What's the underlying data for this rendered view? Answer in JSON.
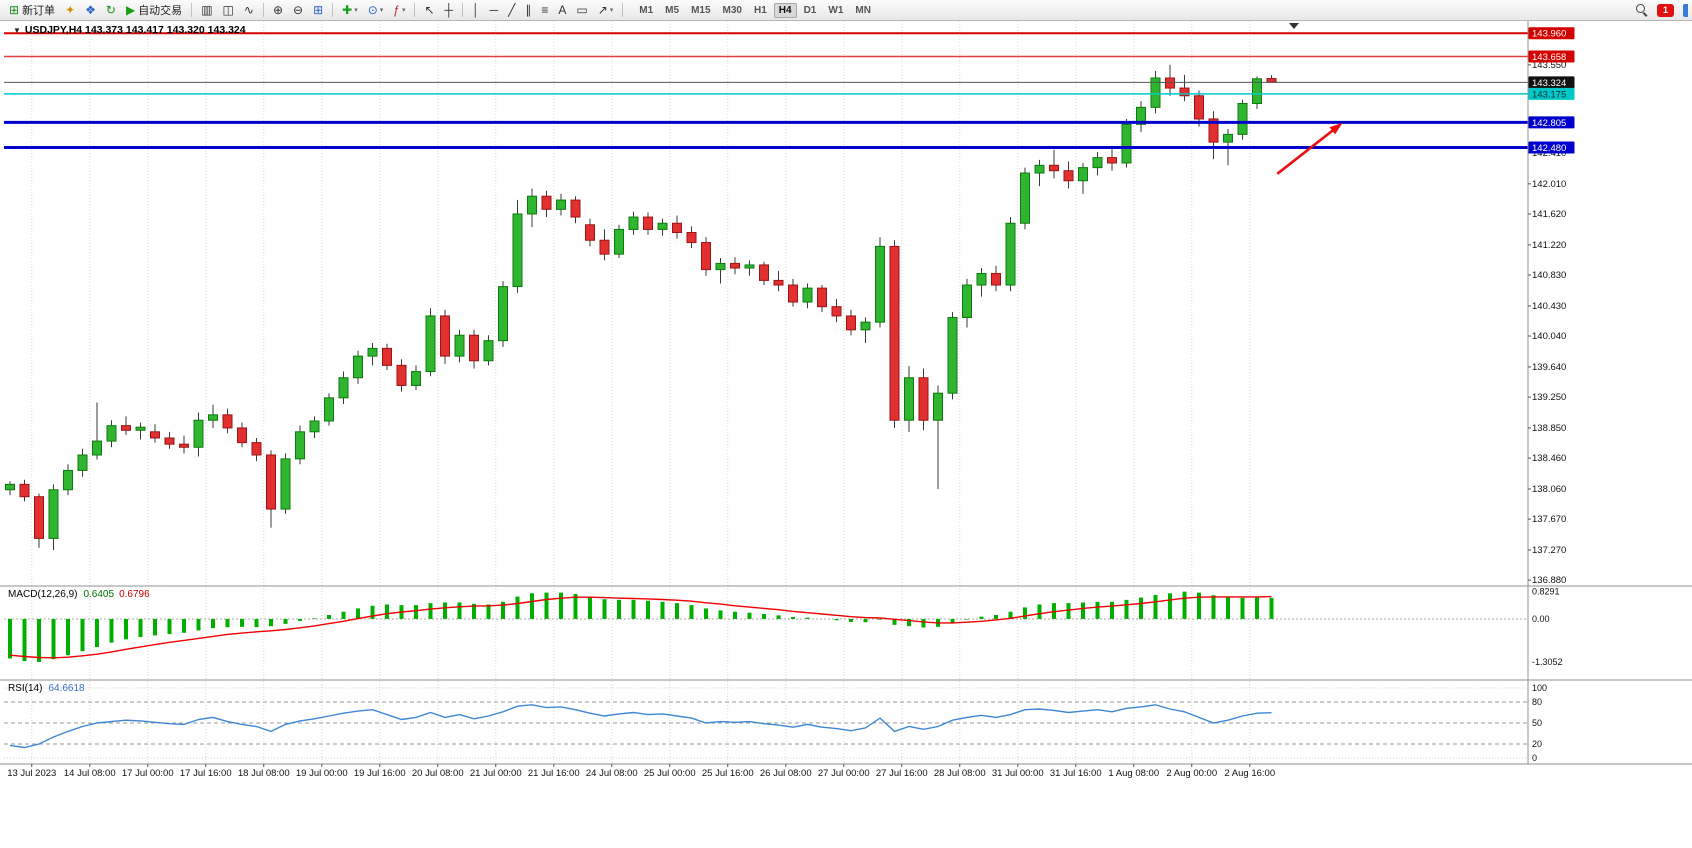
{
  "toolbar": {
    "buttons": [
      {
        "name": "new-order-button",
        "glyph": "⊞",
        "color": "#1a8a1a",
        "label": "新订单"
      },
      {
        "name": "market-watch-icon",
        "glyph": "✦",
        "color": "#d89000"
      },
      {
        "name": "data-window-icon",
        "glyph": "❖",
        "color": "#2860c8"
      },
      {
        "name": "refresh-icon",
        "glyph": "↻",
        "color": "#189018"
      },
      {
        "name": "auto-trading-button",
        "glyph": "▶",
        "color": "#18a018",
        "label": "自动交易"
      },
      {
        "type": "sep"
      },
      {
        "name": "bar-chart-button",
        "glyph": "▥",
        "color": "#333333"
      },
      {
        "name": "candlestick-chart-button",
        "glyph": "◫",
        "color": "#333333"
      },
      {
        "name": "line-chart-button",
        "glyph": "∿",
        "color": "#333333"
      },
      {
        "type": "sep"
      },
      {
        "name": "zoom-in-button",
        "glyph": "⊕",
        "color": "#333333"
      },
      {
        "name": "zoom-out-button",
        "glyph": "⊖",
        "color": "#333333"
      },
      {
        "name": "tile-windows-button",
        "glyph": "⊞",
        "color": "#2860c8"
      },
      {
        "type": "sep"
      },
      {
        "name": "new-chart-button",
        "glyph": "✚",
        "color": "#18a018",
        "caret": true
      },
      {
        "name": "profiles-button",
        "glyph": "⊙",
        "color": "#2860c8",
        "caret": true
      },
      {
        "name": "indicators-button",
        "glyph": "ƒ",
        "color": "#b03030",
        "caret": true
      },
      {
        "type": "sep"
      },
      {
        "name": "cursor-button",
        "glyph": "↖",
        "color": "#333333"
      },
      {
        "name": "crosshair-button",
        "glyph": "┼",
        "color": "#333333"
      },
      {
        "type": "sep"
      },
      {
        "name": "vertical-line-button",
        "glyph": "│",
        "color": "#333333"
      },
      {
        "name": "horizontal-line-button",
        "glyph": "─",
        "color": "#333333"
      },
      {
        "name": "trendline-button",
        "glyph": "╱",
        "color": "#333333"
      },
      {
        "name": "channel-button",
        "glyph": "∥",
        "color": "#333333"
      },
      {
        "name": "fibonacci-button",
        "glyph": "≡",
        "color": "#333333"
      },
      {
        "name": "text-button",
        "glyph": "A",
        "color": "#333333"
      },
      {
        "name": "text-label-button",
        "glyph": "▭",
        "color": "#333333"
      },
      {
        "name": "arrows-button",
        "glyph": "↗",
        "color": "#333333",
        "caret": true
      },
      {
        "type": "sep"
      }
    ],
    "timeframes": [
      "M1",
      "M5",
      "M15",
      "M30",
      "H1",
      "H4",
      "D1",
      "W1",
      "MN"
    ],
    "active_timeframe": "H4",
    "notification_count": "1"
  },
  "chart": {
    "marker": "▼",
    "title": "USDJPY,H4  143.373 143.417 143.320 143.324"
  },
  "chart_data": {
    "type": "candlestick",
    "symbol": "USDJPY",
    "timeframe": "H4",
    "current": {
      "open": "143.373",
      "high": "143.417",
      "low": "143.320",
      "close": "143.324"
    },
    "price_axis": {
      "min": 136.83,
      "max": 144.105,
      "ticks": [
        "143.550",
        "142.410",
        "142.010",
        "141.620",
        "141.220",
        "140.830",
        "140.430",
        "140.040",
        "139.640",
        "139.250",
        "138.850",
        "138.460",
        "138.060",
        "137.670",
        "137.270",
        "136.880"
      ],
      "badges": [
        {
          "value": "143.960",
          "bg": "#d40000",
          "fg": "#ffffff"
        },
        {
          "value": "143.658",
          "bg": "#d40000",
          "fg": "#ffffff"
        },
        {
          "value": "143.324",
          "bg": "#111111",
          "fg": "#ffffff"
        },
        {
          "value": "143.175",
          "bg": "#00c8c8",
          "fg": "#00312f"
        },
        {
          "value": "142.805",
          "bg": "#0000cc",
          "fg": "#ffffff"
        },
        {
          "value": "142.480",
          "bg": "#0000cc",
          "fg": "#ffffff"
        }
      ]
    },
    "levels": [
      {
        "price": 143.96,
        "color": "#d40000",
        "width": 2
      },
      {
        "price": 143.658,
        "color": "#e04040",
        "width": 1.5
      },
      {
        "price": 143.324,
        "color": "#555555",
        "width": 1
      },
      {
        "price": 143.175,
        "color": "#00c8c8",
        "width": 1.5
      },
      {
        "price": 142.805,
        "color": "#0000cc",
        "width": 3
      },
      {
        "price": 142.48,
        "color": "#0000cc",
        "width": 3
      }
    ],
    "x_labels": [
      "13 Jul 2023",
      "14 Jul 08:00",
      "17 Jul 00:00",
      "17 Jul 16:00",
      "18 Jul 08:00",
      "19 Jul 00:00",
      "19 Jul 16:00",
      "20 Jul 08:00",
      "21 Jul 00:00",
      "21 Jul 16:00",
      "24 Jul 08:00",
      "25 Jul 00:00",
      "25 Jul 16:00",
      "26 Jul 08:00",
      "27 Jul 00:00",
      "27 Jul 16:00",
      "28 Jul 08:00",
      "31 Jul 00:00",
      "31 Jul 16:00",
      "1 Aug 08:00",
      "2 Aug 00:00",
      "2 Aug 16:00"
    ],
    "x_label_first_index": 1.5,
    "x_label_step": 4,
    "candles": [
      [
        138.05,
        138.16,
        137.98,
        138.12
      ],
      [
        138.12,
        138.18,
        137.9,
        137.96
      ],
      [
        137.96,
        138.0,
        137.3,
        137.42
      ],
      [
        137.42,
        138.12,
        137.27,
        138.05
      ],
      [
        138.05,
        138.38,
        137.98,
        138.3
      ],
      [
        138.3,
        138.58,
        138.22,
        138.5
      ],
      [
        138.5,
        139.18,
        138.44,
        138.68
      ],
      [
        138.68,
        138.95,
        138.6,
        138.88
      ],
      [
        138.88,
        139.0,
        138.76,
        138.82
      ],
      [
        138.82,
        138.92,
        138.7,
        138.86
      ],
      [
        138.8,
        138.9,
        138.66,
        138.72
      ],
      [
        138.72,
        138.8,
        138.58,
        138.64
      ],
      [
        138.64,
        138.75,
        138.52,
        138.6
      ],
      [
        138.6,
        139.05,
        138.48,
        138.95
      ],
      [
        138.95,
        139.15,
        138.85,
        139.02
      ],
      [
        139.02,
        139.1,
        138.78,
        138.85
      ],
      [
        138.85,
        138.92,
        138.6,
        138.66
      ],
      [
        138.66,
        138.72,
        138.42,
        138.5
      ],
      [
        138.5,
        138.56,
        137.56,
        137.8
      ],
      [
        137.8,
        138.52,
        137.74,
        138.45
      ],
      [
        138.45,
        138.88,
        138.38,
        138.8
      ],
      [
        138.8,
        139.0,
        138.72,
        138.94
      ],
      [
        138.94,
        139.3,
        138.88,
        139.24
      ],
      [
        139.24,
        139.58,
        139.16,
        139.5
      ],
      [
        139.5,
        139.85,
        139.42,
        139.78
      ],
      [
        139.78,
        139.95,
        139.66,
        139.88
      ],
      [
        139.88,
        139.94,
        139.6,
        139.66
      ],
      [
        139.66,
        139.74,
        139.32,
        139.4
      ],
      [
        139.4,
        139.66,
        139.34,
        139.58
      ],
      [
        139.58,
        140.4,
        139.52,
        140.3
      ],
      [
        140.3,
        140.38,
        139.68,
        139.78
      ],
      [
        139.78,
        140.12,
        139.7,
        140.05
      ],
      [
        140.05,
        140.12,
        139.62,
        139.72
      ],
      [
        139.72,
        140.05,
        139.66,
        139.98
      ],
      [
        139.98,
        140.75,
        139.9,
        140.68
      ],
      [
        140.68,
        141.8,
        140.6,
        141.62
      ],
      [
        141.62,
        141.95,
        141.45,
        141.85
      ],
      [
        141.85,
        141.92,
        141.58,
        141.68
      ],
      [
        141.68,
        141.88,
        141.6,
        141.8
      ],
      [
        141.8,
        141.85,
        141.5,
        141.58
      ],
      [
        141.48,
        141.56,
        141.2,
        141.28
      ],
      [
        141.28,
        141.42,
        141.02,
        141.1
      ],
      [
        141.1,
        141.48,
        141.05,
        141.42
      ],
      [
        141.42,
        141.65,
        141.35,
        141.58
      ],
      [
        141.58,
        141.64,
        141.35,
        141.42
      ],
      [
        141.42,
        141.56,
        141.34,
        141.5
      ],
      [
        141.5,
        141.6,
        141.3,
        141.38
      ],
      [
        141.38,
        141.46,
        141.18,
        141.25
      ],
      [
        141.25,
        141.32,
        140.82,
        140.9
      ],
      [
        140.9,
        141.05,
        140.72,
        140.98
      ],
      [
        140.98,
        141.06,
        140.84,
        140.92
      ],
      [
        140.92,
        141.02,
        140.82,
        140.96
      ],
      [
        140.96,
        141.0,
        140.7,
        140.76
      ],
      [
        140.76,
        140.88,
        140.62,
        140.7
      ],
      [
        140.7,
        140.78,
        140.42,
        140.48
      ],
      [
        140.48,
        140.72,
        140.4,
        140.66
      ],
      [
        140.66,
        140.7,
        140.35,
        140.42
      ],
      [
        140.42,
        140.52,
        140.22,
        140.3
      ],
      [
        140.3,
        140.38,
        140.05,
        140.12
      ],
      [
        140.12,
        140.28,
        139.95,
        140.22
      ],
      [
        140.22,
        141.32,
        140.15,
        141.2
      ],
      [
        141.2,
        141.28,
        138.85,
        138.95
      ],
      [
        138.95,
        139.65,
        138.8,
        139.5
      ],
      [
        139.5,
        139.62,
        138.82,
        138.95
      ],
      [
        138.95,
        139.4,
        138.06,
        139.3
      ],
      [
        139.3,
        140.35,
        139.22,
        140.28
      ],
      [
        140.28,
        140.78,
        140.15,
        140.7
      ],
      [
        140.7,
        140.92,
        140.55,
        140.85
      ],
      [
        140.85,
        140.95,
        140.62,
        140.7
      ],
      [
        140.7,
        141.58,
        140.62,
        141.5
      ],
      [
        141.5,
        142.22,
        141.42,
        142.15
      ],
      [
        142.15,
        142.32,
        141.98,
        142.25
      ],
      [
        142.25,
        142.45,
        142.08,
        142.18
      ],
      [
        142.18,
        142.3,
        141.95,
        142.05
      ],
      [
        142.05,
        142.28,
        141.88,
        142.22
      ],
      [
        142.22,
        142.42,
        142.12,
        142.35
      ],
      [
        142.35,
        142.48,
        142.18,
        142.28
      ],
      [
        142.28,
        142.85,
        142.22,
        142.78
      ],
      [
        142.78,
        143.08,
        142.68,
        143.0
      ],
      [
        143.0,
        143.47,
        142.92,
        143.38
      ],
      [
        143.38,
        143.55,
        143.15,
        143.25
      ],
      [
        143.25,
        143.42,
        143.08,
        143.15
      ],
      [
        143.15,
        143.22,
        142.75,
        142.85
      ],
      [
        142.85,
        142.95,
        142.33,
        142.55
      ],
      [
        142.55,
        142.72,
        142.25,
        142.65
      ],
      [
        142.65,
        143.1,
        142.58,
        143.05
      ],
      [
        143.05,
        143.4,
        142.98,
        143.37
      ],
      [
        143.373,
        143.417,
        143.32,
        143.324
      ]
    ],
    "arrow": {
      "i1": 87.4,
      "p1": 142.14,
      "i2": 91.9,
      "p2": 142.8,
      "color": "#e81010"
    },
    "macd": {
      "name": "MACD(12,26,9)",
      "main_value": "0.6405",
      "signal_value": "0.6796",
      "axis_labels": [
        "0.8291",
        "0.00",
        "-1.3052"
      ],
      "range": {
        "max": 0.94,
        "min": -1.55
      },
      "main": [
        -1.2,
        -1.28,
        -1.3052,
        -1.22,
        -1.1,
        -0.98,
        -0.85,
        -0.72,
        -0.62,
        -0.55,
        -0.5,
        -0.46,
        -0.42,
        -0.35,
        -0.28,
        -0.25,
        -0.24,
        -0.25,
        -0.22,
        -0.15,
        -0.06,
        0.02,
        0.12,
        0.22,
        0.32,
        0.4,
        0.44,
        0.42,
        0.42,
        0.48,
        0.5,
        0.5,
        0.46,
        0.44,
        0.52,
        0.68,
        0.78,
        0.8,
        0.8,
        0.76,
        0.68,
        0.6,
        0.58,
        0.58,
        0.55,
        0.52,
        0.48,
        0.42,
        0.32,
        0.26,
        0.22,
        0.19,
        0.15,
        0.11,
        0.06,
        0.04,
        0.0,
        -0.04,
        -0.09,
        -0.1,
        -0.02,
        -0.18,
        -0.22,
        -0.26,
        -0.24,
        -0.12,
        -0.02,
        0.07,
        0.12,
        0.22,
        0.35,
        0.44,
        0.48,
        0.48,
        0.5,
        0.52,
        0.52,
        0.58,
        0.65,
        0.73,
        0.78,
        0.8291,
        0.8,
        0.72,
        0.66,
        0.64,
        0.65,
        0.6405
      ],
      "signal": [
        -1.1,
        -1.14,
        -1.17,
        -1.18,
        -1.16,
        -1.12,
        -1.07,
        -1.0,
        -0.92,
        -0.85,
        -0.78,
        -0.71,
        -0.65,
        -0.59,
        -0.53,
        -0.47,
        -0.43,
        -0.39,
        -0.36,
        -0.32,
        -0.27,
        -0.21,
        -0.14,
        -0.07,
        0.01,
        0.09,
        0.16,
        0.21,
        0.25,
        0.3,
        0.34,
        0.37,
        0.39,
        0.4,
        0.42,
        0.47,
        0.53,
        0.59,
        0.63,
        0.66,
        0.66,
        0.65,
        0.63,
        0.62,
        0.61,
        0.59,
        0.57,
        0.54,
        0.49,
        0.45,
        0.4,
        0.36,
        0.32,
        0.28,
        0.23,
        0.19,
        0.15,
        0.11,
        0.07,
        0.04,
        0.03,
        -0.01,
        -0.05,
        -0.09,
        -0.12,
        -0.12,
        -0.1,
        -0.07,
        -0.03,
        0.02,
        0.09,
        0.16,
        0.22,
        0.27,
        0.32,
        0.36,
        0.39,
        0.43,
        0.47,
        0.52,
        0.58,
        0.63,
        0.66,
        0.67,
        0.67,
        0.67,
        0.67,
        0.6796
      ]
    },
    "rsi": {
      "name": "RSI(14)",
      "value": "64.6618",
      "axis_labels": [
        "100",
        "80",
        "50",
        "20",
        "0"
      ],
      "levels": [
        80,
        50,
        20
      ],
      "range": {
        "max": 100,
        "min": 0
      },
      "series": [
        18,
        15,
        20,
        30,
        38,
        45,
        50,
        52,
        54,
        53,
        51,
        49,
        48,
        55,
        58,
        52,
        48,
        45,
        38,
        48,
        53,
        56,
        60,
        64,
        67,
        69,
        62,
        55,
        58,
        65,
        58,
        62,
        56,
        60,
        66,
        74,
        76,
        72,
        73,
        69,
        64,
        60,
        63,
        65,
        62,
        63,
        60,
        57,
        50,
        52,
        51,
        52,
        49,
        47,
        44,
        48,
        44,
        42,
        39,
        43,
        57,
        38,
        45,
        41,
        45,
        54,
        58,
        61,
        58,
        62,
        69,
        70,
        68,
        65,
        67,
        69,
        66,
        71,
        73,
        76,
        70,
        66,
        58,
        50,
        54,
        60,
        64,
        64.6618
      ]
    }
  }
}
